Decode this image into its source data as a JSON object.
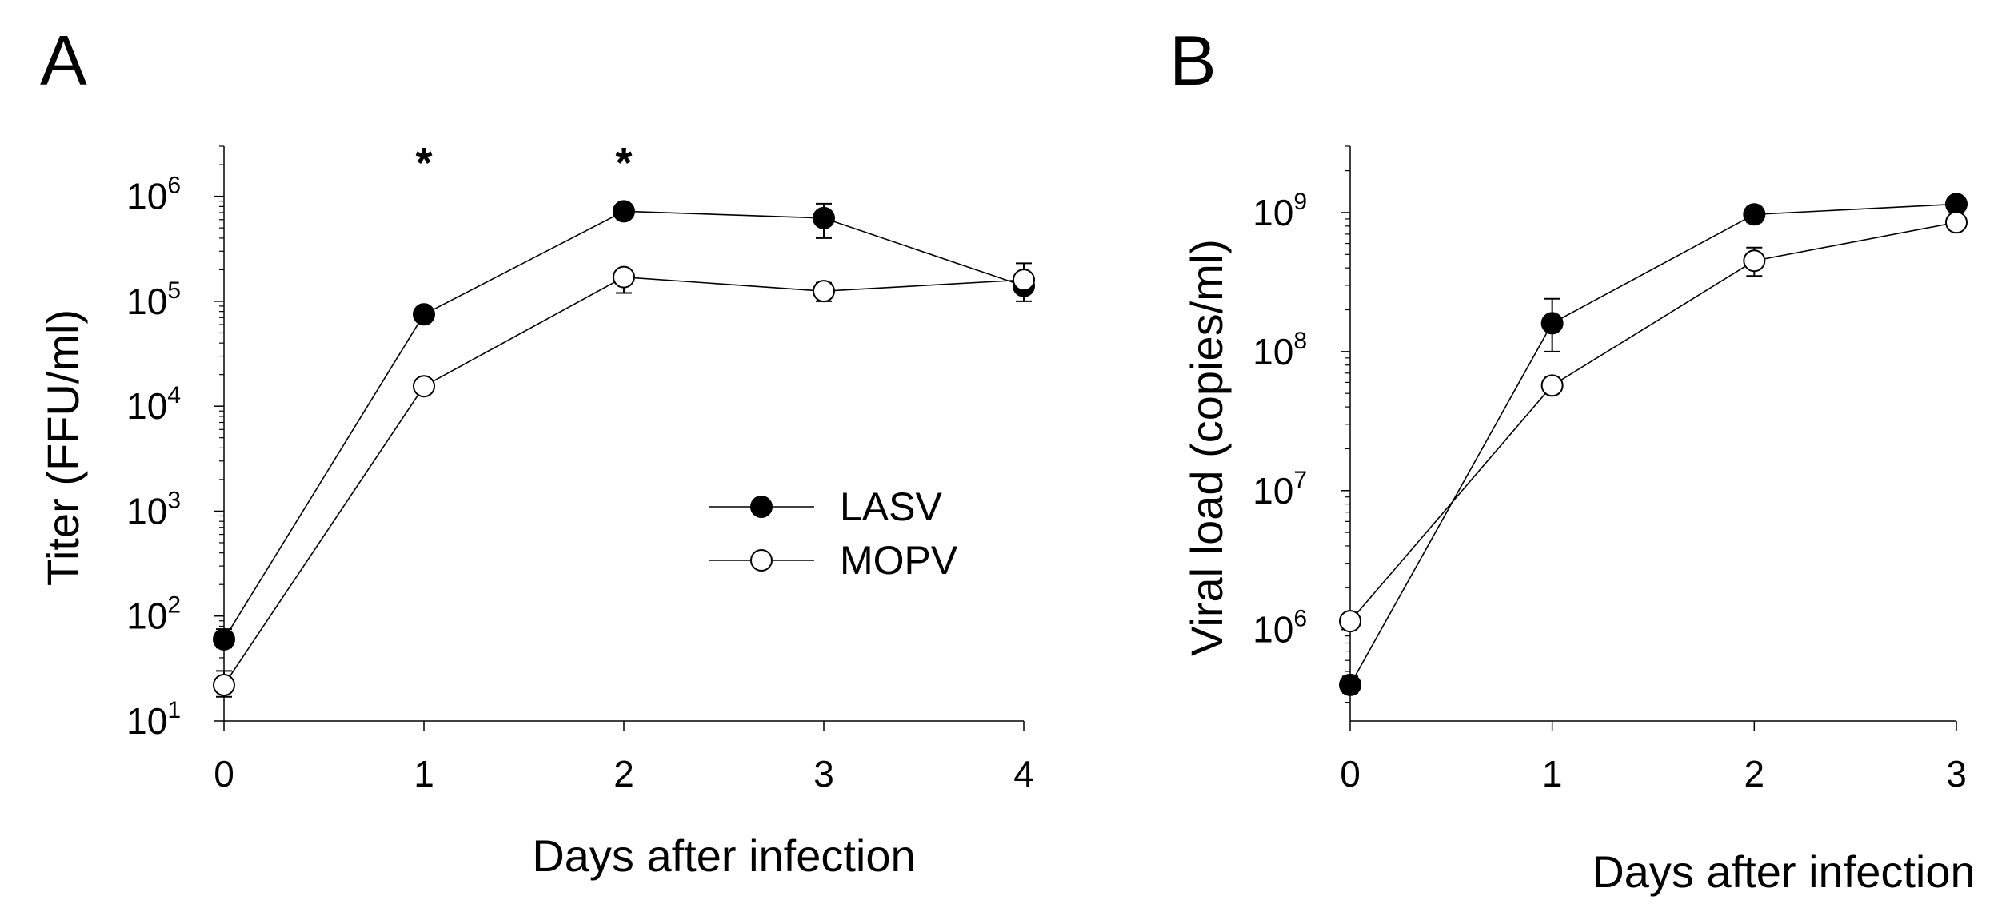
{
  "chart_data": [
    {
      "panel": "A",
      "type": "line",
      "yscale": "log",
      "xlabel": "Days after infection",
      "ylabel": "Titer (FFU/ml)",
      "x": [
        0,
        1,
        2,
        3,
        4
      ],
      "xticks": [
        "0",
        "1",
        "2",
        "3",
        "4"
      ],
      "xlim": [
        0,
        4
      ],
      "ylim": [
        10,
        3000000
      ],
      "yticks": [
        {
          "value": 10,
          "base": "10",
          "exp": "1"
        },
        {
          "value": 100,
          "base": "10",
          "exp": "2"
        },
        {
          "value": 1000,
          "base": "10",
          "exp": "3"
        },
        {
          "value": 10000,
          "base": "10",
          "exp": "4"
        },
        {
          "value": 100000,
          "base": "10",
          "exp": "5"
        },
        {
          "value": 1000000,
          "base": "10",
          "exp": "6"
        }
      ],
      "series": [
        {
          "name": "LASV",
          "marker": "filled",
          "values": [
            60,
            75000,
            720000,
            620000,
            140000
          ],
          "err_hi": [
            75,
            85000,
            760000,
            850000,
            180000
          ],
          "err_lo": [
            50,
            68000,
            680000,
            400000,
            100000
          ]
        },
        {
          "name": "MOPV",
          "marker": "open",
          "values": [
            22,
            15500,
            170000,
            125000,
            160000
          ],
          "err_hi": [
            30,
            17000,
            200000,
            150000,
            230000
          ],
          "err_lo": [
            17,
            14000,
            120000,
            100000,
            130000
          ]
        }
      ],
      "legend": {
        "position": "center-right",
        "entries": [
          "LASV",
          "MOPV"
        ]
      },
      "annotations": [
        {
          "text": "*",
          "x": 1
        },
        {
          "text": "*",
          "x": 2
        }
      ]
    },
    {
      "panel": "B",
      "type": "line",
      "yscale": "log",
      "xlabel": "Days after infection",
      "ylabel": "Viral load (copies/ml)",
      "x": [
        0,
        1,
        2,
        3
      ],
      "xticks": [
        "0",
        "1",
        "2",
        "3"
      ],
      "xlim": [
        0,
        3
      ],
      "ylim": [
        220000,
        3000000000
      ],
      "yticks": [
        {
          "value": 1000000,
          "base": "10",
          "exp": "6"
        },
        {
          "value": 10000000,
          "base": "10",
          "exp": "7"
        },
        {
          "value": 100000000,
          "base": "10",
          "exp": "8"
        },
        {
          "value": 1000000000,
          "base": "10",
          "exp": "9"
        }
      ],
      "series": [
        {
          "name": "LASV",
          "marker": "filled",
          "values": [
            400000,
            160000000,
            970000000,
            1150000000
          ],
          "err_hi": [
            460000,
            240000000,
            1100000000,
            1250000000
          ],
          "err_lo": [
            350000,
            100000000,
            850000000,
            1050000000
          ]
        },
        {
          "name": "MOPV",
          "marker": "open",
          "values": [
            1150000,
            57000000,
            450000000,
            850000000
          ],
          "err_hi": [
            1250000,
            65000000,
            560000000,
            950000000
          ],
          "err_lo": [
            1050000,
            50000000,
            350000000,
            750000000
          ]
        }
      ]
    }
  ]
}
